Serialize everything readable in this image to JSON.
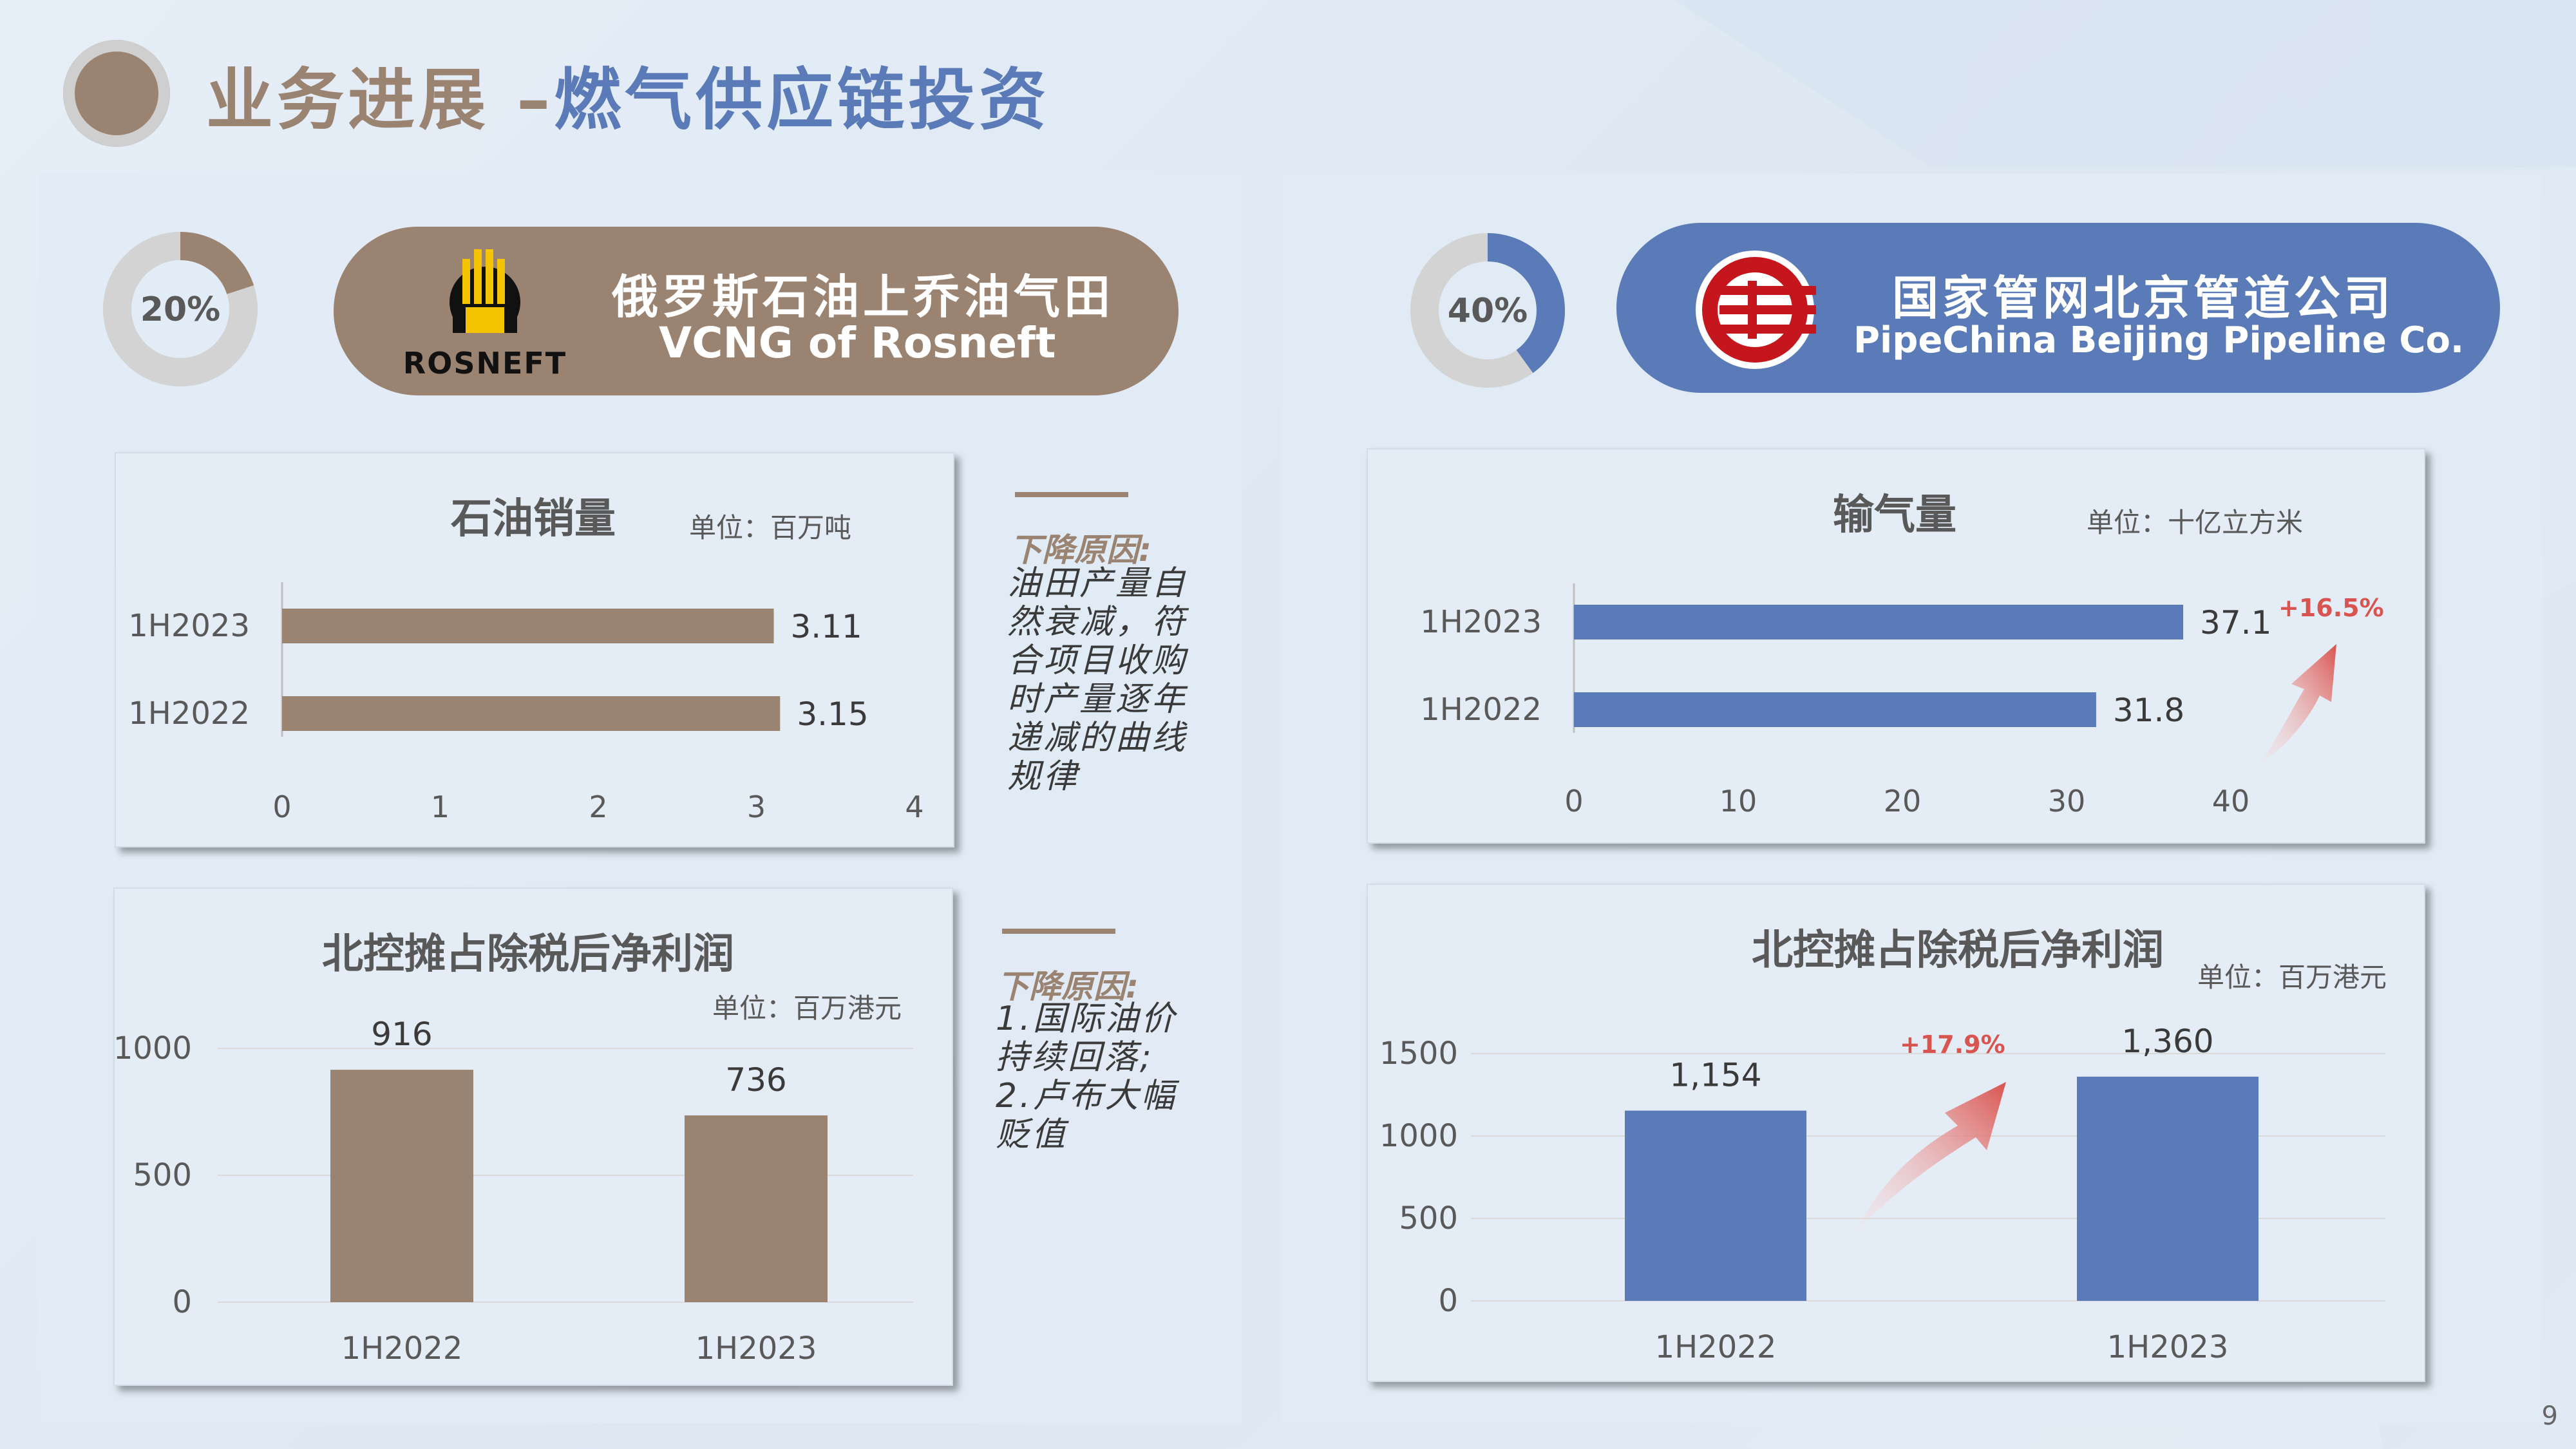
{
  "header": {
    "title_left": "业务进展 – ",
    "title_right": "燃气供应链投资"
  },
  "colors": {
    "brown": "#9b8372",
    "blue": "#5a7ab8",
    "growth_red": "#d9534f"
  },
  "left": {
    "share": "20%",
    "share_value": 0.2,
    "company_cn": "俄罗斯石油上乔油气田",
    "company_en": "VCNG of Rosneft",
    "logo_text": "ROSNEFT",
    "note1": {
      "head": "下降原因:",
      "lines": [
        "油田产量自",
        "然衰减，符",
        "合项目收购",
        "时产量逐年",
        "递减的曲线",
        "规律"
      ]
    },
    "note2": {
      "head": "下降原因:",
      "lines": [
        "1.国际油价",
        "持续回落;",
        "2.卢布大幅",
        "贬值"
      ]
    }
  },
  "right": {
    "share": "40%",
    "share_value": 0.4,
    "company_cn": "国家管网北京管道公司",
    "company_en": "PipeChina Beijing Pipeline Co.",
    "growth1": "+16.5%",
    "growth2": "+17.9%"
  },
  "page_number": "9",
  "chart_data": [
    {
      "type": "bar",
      "orientation": "horizontal",
      "title": "石油销量",
      "unit": "单位：百万吨",
      "categories": [
        "1H2023",
        "1H2022"
      ],
      "values": [
        3.11,
        3.15
      ],
      "labels": [
        "3.11",
        "3.15"
      ],
      "xlim": [
        0,
        4
      ],
      "ticks": [
        "0",
        "1",
        "2",
        "3",
        "4"
      ],
      "color": "#9b8372"
    },
    {
      "type": "bar",
      "title": "北控摊占除税后净利润",
      "unit": "单位：百万港元",
      "categories": [
        "1H2022",
        "1H2023"
      ],
      "values": [
        916,
        736
      ],
      "labels": [
        "916",
        "736"
      ],
      "ylim": [
        0,
        1000
      ],
      "ticks": [
        "0",
        "500",
        "1000"
      ],
      "color": "#9b8372"
    },
    {
      "type": "bar",
      "orientation": "horizontal",
      "title": "输气量",
      "unit": "单位：十亿立方米",
      "categories": [
        "1H2023",
        "1H2022"
      ],
      "values": [
        37.1,
        31.8
      ],
      "labels": [
        "37.1",
        "31.8"
      ],
      "xlim": [
        0,
        40
      ],
      "ticks": [
        "0",
        "10",
        "20",
        "30",
        "40"
      ],
      "color": "#5a7ab8"
    },
    {
      "type": "bar",
      "title": "北控摊占除税后净利润",
      "unit": "单位：百万港元",
      "categories": [
        "1H2022",
        "1H2023"
      ],
      "values": [
        1154,
        1360
      ],
      "labels": [
        "1,154",
        "1,360"
      ],
      "ylim": [
        0,
        1500
      ],
      "ticks": [
        "0",
        "500",
        "1000",
        "1500"
      ],
      "color": "#5a7ab8"
    }
  ]
}
